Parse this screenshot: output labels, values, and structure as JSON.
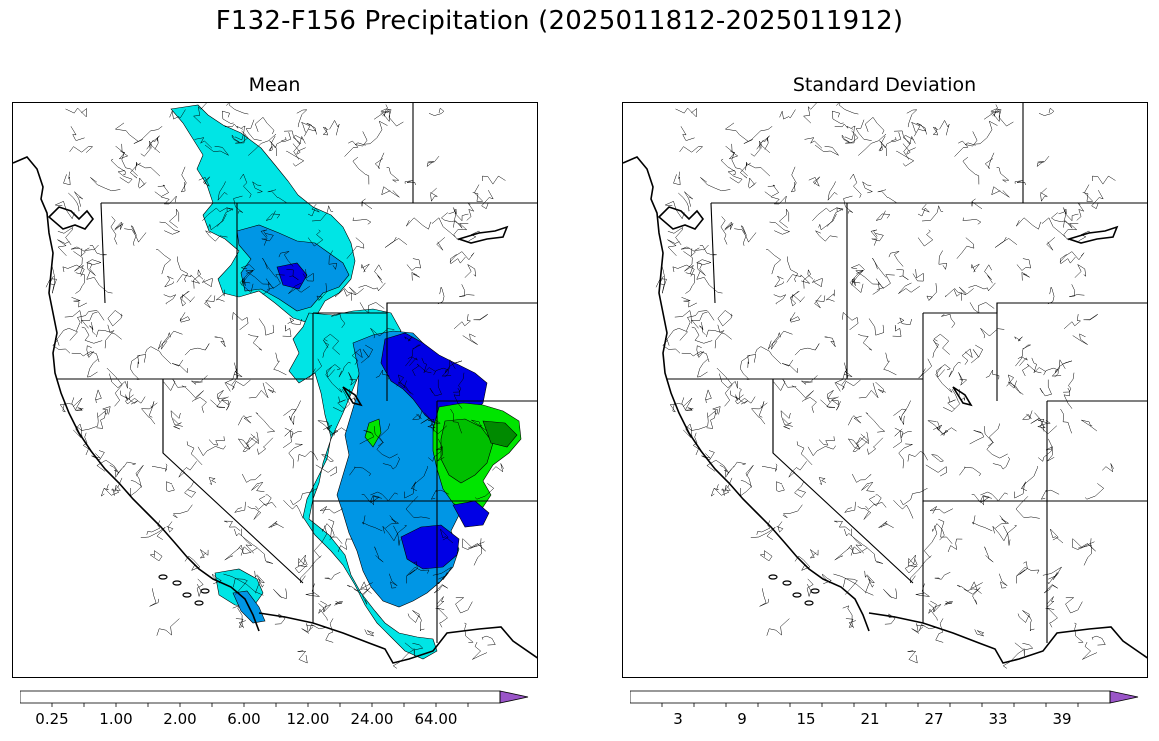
{
  "title": "F132-F156 Precipitation (2025011812-2025011912)",
  "panels": [
    {
      "title": "Mean",
      "tick_labels": [
        "0.25",
        "1.00",
        "2.00",
        "6.00",
        "12.00",
        "24.00",
        "64.00"
      ]
    },
    {
      "title": "Standard Deviation",
      "tick_labels": [
        "3",
        "9",
        "15",
        "21",
        "27",
        "33",
        "39"
      ]
    }
  ],
  "colormap": [
    "#ffffff",
    "#00e5e5",
    "#0096e5",
    "#0000e5",
    "#00e500",
    "#00bf00",
    "#008a00",
    "#ffff00",
    "#e5bf00",
    "#ff8c00",
    "#ff0000",
    "#d40000",
    "#b40000",
    "#ff00ff",
    "#9a55c8"
  ],
  "region_colors": {
    "cyan": "#00e5e5",
    "light_blue": "#0096e5",
    "blue": "#0000e5",
    "green": "#00e500",
    "mid_green": "#00bf00",
    "dark_green": "#008a00"
  }
}
